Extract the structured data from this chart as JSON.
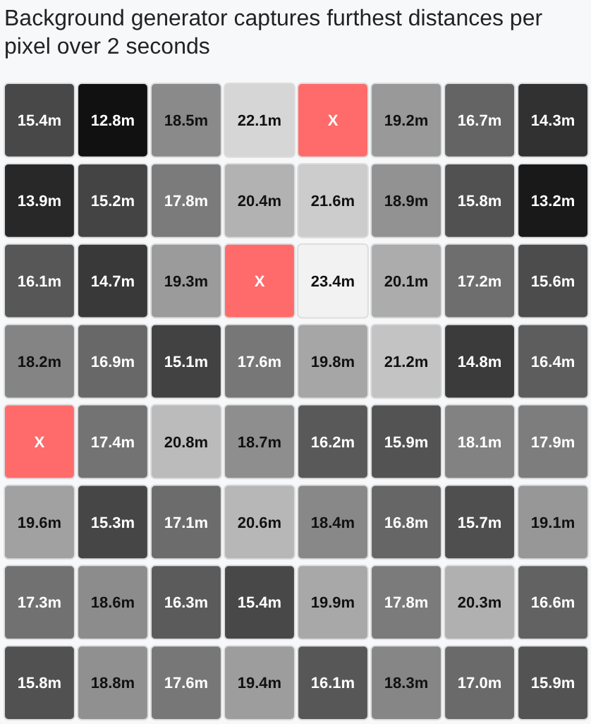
{
  "chart_data": {
    "type": "heatmap",
    "title": "Background generator captures furthest distances per pixel over 2 seconds",
    "categories": [
      null,
      null,
      null,
      null,
      null,
      null,
      null,
      null
    ],
    "y_categories": [
      null,
      null,
      null,
      null,
      null,
      null,
      null,
      null
    ],
    "color": "#ff6b6b",
    "cells": [
      [
        15.4,
        12.8,
        18.5,
        22.1,
        null,
        19.2,
        16.7,
        14.3
      ],
      [
        13.9,
        15.2,
        17.8,
        20.4,
        21.6,
        18.9,
        15.8,
        13.2
      ],
      [
        16.1,
        14.7,
        19.3,
        null,
        23.4,
        20.1,
        17.2,
        15.6
      ],
      [
        18.2,
        16.9,
        15.1,
        17.6,
        19.8,
        21.2,
        14.8,
        16.4
      ],
      [
        null,
        17.4,
        20.8,
        18.7,
        16.2,
        15.9,
        18.1,
        17.9
      ],
      [
        19.6,
        15.3,
        17.1,
        20.6,
        18.4,
        16.8,
        15.7,
        19.1
      ],
      [
        17.3,
        18.6,
        16.3,
        15.4,
        19.9,
        17.8,
        20.3,
        16.6
      ],
      [
        15.8,
        18.8,
        17.6,
        19.4,
        16.1,
        18.3,
        17.0,
        15.9
      ]
    ],
    "cell_labels": [
      [
        "15.4m",
        "12.8m",
        "18.5m",
        "22.1m",
        "X",
        "19.2m",
        "16.7m",
        "14.3m"
      ],
      [
        "13.9m",
        "15.2m",
        "17.8m",
        "20.4m",
        "21.6m",
        "18.9m",
        "15.8m",
        "13.2m"
      ],
      [
        "16.1m",
        "14.7m",
        "19.3m",
        "X",
        "23.4m",
        "20.1m",
        "17.2m",
        "15.6m"
      ],
      [
        "18.2m",
        "16.9m",
        "15.1m",
        "17.6m",
        "19.8m",
        "21.2m",
        "14.8m",
        "16.4m"
      ],
      [
        "X",
        "17.4m",
        "20.8m",
        "18.7m",
        "16.2m",
        "15.9m",
        "18.1m",
        "17.9m"
      ],
      [
        "19.6m",
        "15.3m",
        "17.1m",
        "20.6m",
        "18.4m",
        "16.8m",
        "15.7m",
        "19.1m"
      ],
      [
        "17.3m",
        "18.6m",
        "16.3m",
        "15.4m",
        "19.9m",
        "17.8m",
        "20.3m",
        "16.6m"
      ],
      [
        "15.8m",
        "18.8m",
        "17.6m",
        "19.4m",
        "16.1m",
        "18.3m",
        "17.0m",
        "15.9m"
      ]
    ]
  }
}
